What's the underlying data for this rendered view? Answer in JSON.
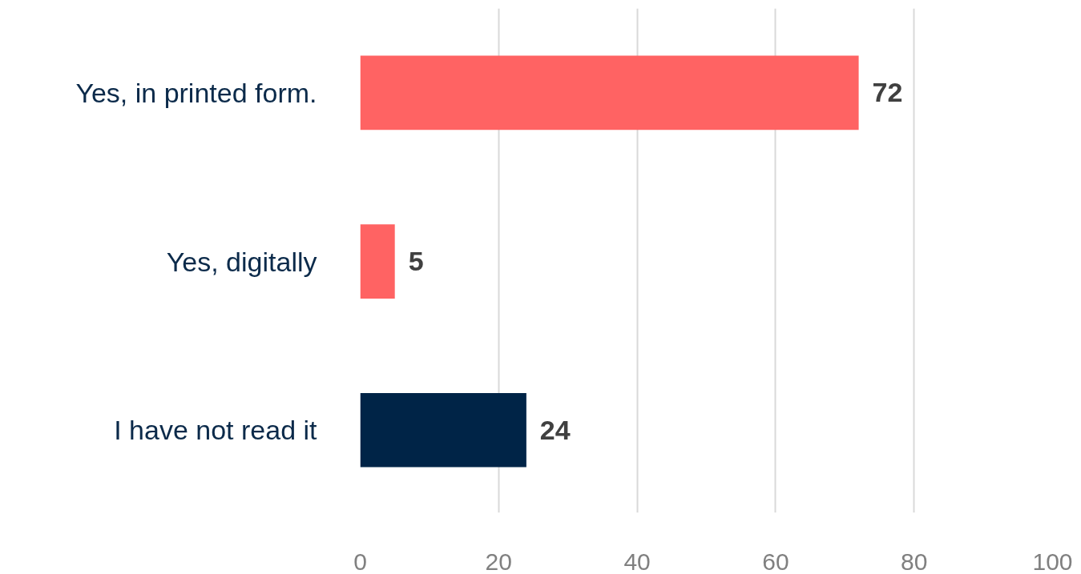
{
  "chart_data": {
    "type": "bar",
    "orientation": "horizontal",
    "categories": [
      "Yes, in printed form.",
      "Yes, digitally",
      "I have not read it"
    ],
    "values": [
      72,
      5,
      24
    ],
    "colors": [
      "#ff6363",
      "#ff6363",
      "#002447"
    ],
    "xlim": [
      0,
      100
    ],
    "xticks": [
      0,
      20,
      40,
      60,
      80,
      100
    ],
    "grid": "x",
    "data_labels": true
  }
}
